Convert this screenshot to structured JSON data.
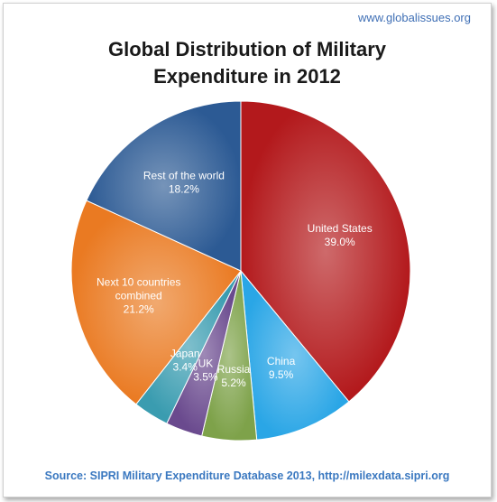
{
  "header": {
    "site": "www.globalissues.org"
  },
  "chart_data": {
    "type": "pie",
    "title": "Global Distribution of Military Expenditure in 2012",
    "title_lines": [
      "Global Distribution of Military",
      "Expenditure in 2012"
    ],
    "slices": [
      {
        "label": "United States",
        "label_lines": [
          "United States"
        ],
        "value": 39.0,
        "value_label": "39.0%",
        "color": "#b3191c"
      },
      {
        "label": "China",
        "label_lines": [
          "China"
        ],
        "value": 9.5,
        "value_label": "9.5%",
        "color": "#2aa6e6"
      },
      {
        "label": "Russia",
        "label_lines": [
          "Russia"
        ],
        "value": 5.2,
        "value_label": "5.2%",
        "color": "#7ea24a"
      },
      {
        "label": "UK",
        "label_lines": [
          "UK"
        ],
        "value": 3.5,
        "value_label": "3.5%",
        "color": "#6a4a8e"
      },
      {
        "label": "Japan",
        "label_lines": [
          "Japan"
        ],
        "value": 3.4,
        "value_label": "3.4%",
        "color": "#3a9cb0"
      },
      {
        "label": "Next 10 countries combined",
        "label_lines": [
          "Next 10 countries",
          "combined"
        ],
        "value": 21.2,
        "value_label": "21.2%",
        "color": "#ea7a22"
      },
      {
        "label": "Rest of the world",
        "label_lines": [
          "Rest of the world"
        ],
        "value": 18.2,
        "value_label": "18.2%",
        "color": "#2c5a94"
      }
    ]
  },
  "footer": {
    "source": "Source: SIPRI Military Expenditure Database 2013, http://milexdata.sipri.org"
  }
}
